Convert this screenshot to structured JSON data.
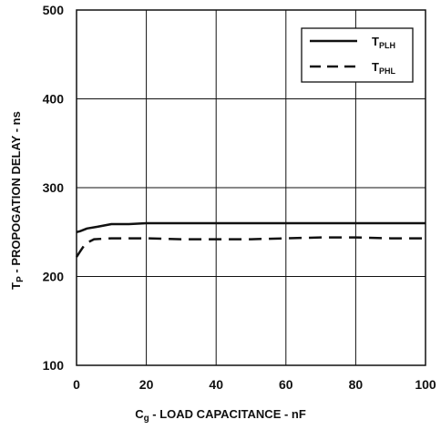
{
  "chart_data": {
    "type": "line",
    "title": "",
    "xlabel": {
      "main": "C",
      "sub": "g",
      "rest": " - LOAD CAPACITANCE - nF"
    },
    "ylabel": {
      "main": "T",
      "sub": "P",
      "rest": " - PROPOGATION DELAY - ns"
    },
    "xlim": [
      0,
      100
    ],
    "ylim": [
      100,
      500
    ],
    "xticks": [
      0,
      20,
      40,
      60,
      80,
      100
    ],
    "yticks": [
      100,
      200,
      300,
      400,
      500
    ],
    "grid": true,
    "legend_position": "top-right",
    "series": [
      {
        "name_main": "T",
        "name_sub": "PLH",
        "style": "solid",
        "color": "#111111",
        "x": [
          0,
          1,
          3,
          6,
          10,
          15,
          20,
          30,
          40,
          50,
          60,
          70,
          80,
          90,
          100
        ],
        "y": [
          250,
          251,
          254,
          256,
          259,
          259,
          260,
          260,
          260,
          260,
          260,
          260,
          260,
          260,
          260
        ]
      },
      {
        "name_main": "T",
        "name_sub": "PHL",
        "style": "dashed",
        "color": "#111111",
        "x": [
          0,
          1,
          2,
          3,
          5,
          10,
          20,
          30,
          40,
          50,
          60,
          70,
          80,
          90,
          100
        ],
        "y": [
          222,
          228,
          234,
          238,
          242,
          243,
          243,
          242,
          242,
          242,
          243,
          244,
          244,
          243,
          243
        ]
      }
    ]
  }
}
